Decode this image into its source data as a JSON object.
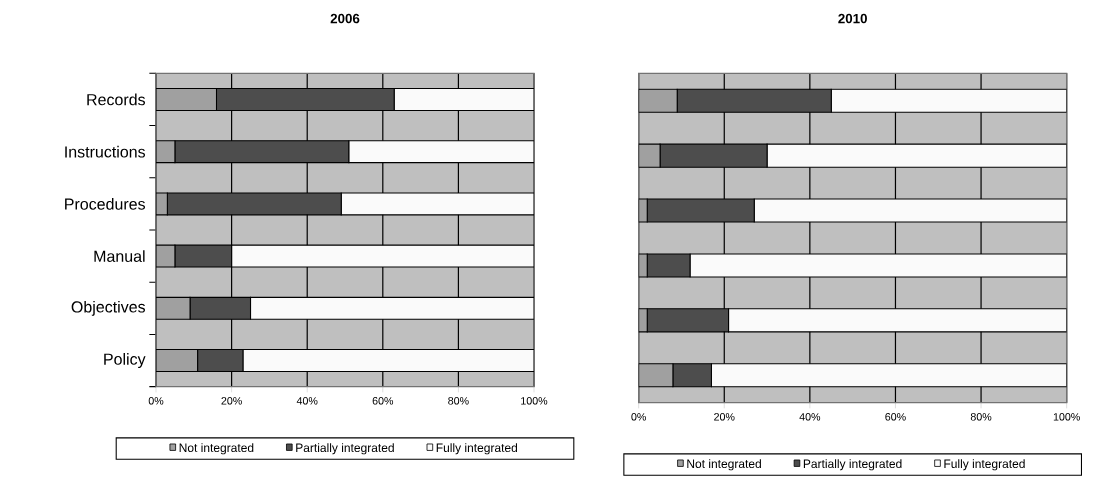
{
  "chart_data": [
    {
      "type": "bar",
      "orientation": "horizontal",
      "stacked": true,
      "title": "2006",
      "categories": [
        "Records",
        "Instructions",
        "Procedures",
        "Manual",
        "Objectives",
        "Policy"
      ],
      "series": [
        {
          "name": "Not integrated",
          "color": "#a0a0a0",
          "values": [
            16,
            5,
            3,
            5,
            9,
            11
          ]
        },
        {
          "name": "Partially integrated",
          "color": "#4d4d4d",
          "values": [
            47,
            46,
            46,
            15,
            16,
            12
          ]
        },
        {
          "name": "Fully integrated",
          "color": "#fafafa",
          "values": [
            37,
            49,
            51,
            80,
            75,
            77
          ]
        }
      ],
      "xlim": [
        0,
        100
      ],
      "xticks": [
        {
          "value": 0,
          "label": "0%"
        },
        {
          "value": 20,
          "label": "20%"
        },
        {
          "value": 40,
          "label": "40%"
        },
        {
          "value": 60,
          "label": "60%"
        },
        {
          "value": 80,
          "label": "80%"
        },
        {
          "value": 100,
          "label": "100%"
        }
      ],
      "grid": "x",
      "legend": "bottom"
    },
    {
      "type": "bar",
      "orientation": "horizontal",
      "stacked": true,
      "title": "2010",
      "categories": [
        null,
        null,
        null,
        null,
        null,
        null
      ],
      "series": [
        {
          "name": "Not integrated",
          "color": "#a0a0a0",
          "values": [
            9,
            5,
            2,
            2,
            2,
            8
          ]
        },
        {
          "name": "Partially integrated",
          "color": "#4d4d4d",
          "values": [
            36,
            25,
            25,
            10,
            19,
            9
          ]
        },
        {
          "name": "Fully integrated",
          "color": "#fafafa",
          "values": [
            55,
            70,
            73,
            88,
            79,
            83
          ]
        }
      ],
      "xlim": [
        0,
        100
      ],
      "xticks": [
        {
          "value": 0,
          "label": "0%"
        },
        {
          "value": 20,
          "label": "20%"
        },
        {
          "value": 40,
          "label": "40%"
        },
        {
          "value": 60,
          "label": "60%"
        },
        {
          "value": 80,
          "label": "80%"
        },
        {
          "value": 100,
          "label": "100%"
        }
      ],
      "grid": "x",
      "legend": "bottom",
      "tick_labels": "x"
    }
  ]
}
